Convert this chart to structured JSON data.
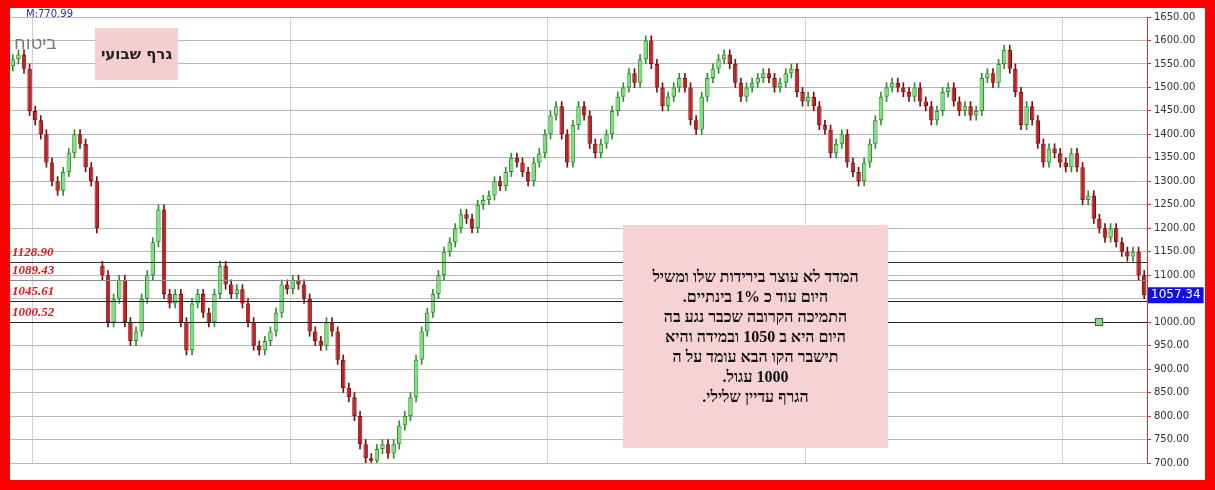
{
  "chart_data": {
    "type": "candlestick",
    "title": "ביטוח",
    "subtitle": "גרף שבועי",
    "annotations": [
      "M:770.99",
      "המדד לא עוצר  בירידות שלו ומשיל\nהיום עוד  כ  1% בינתיים.\nהתמיכה הקרובה  שכבר נגע בה\nהיום היא ב  1050  ובמידה והיא\nתישבר הקו הבא עומד על ה\n1000 עגול.\nהגרף עדיין  שלילי.",
      "1057.34"
    ],
    "categories": [
      null,
      null,
      null,
      null,
      null,
      null,
      null,
      null,
      null,
      null,
      null,
      null,
      null,
      null,
      null,
      null,
      null,
      null,
      null,
      null,
      null,
      null,
      null,
      null,
      null,
      null,
      null,
      null,
      null,
      null,
      null,
      null,
      null,
      null,
      null,
      null,
      null,
      null,
      null,
      null,
      null,
      null,
      null,
      null,
      null,
      null,
      null,
      null,
      null,
      null,
      null,
      null,
      null,
      null,
      null,
      null,
      null,
      null,
      null,
      null,
      null,
      null,
      null,
      null,
      null,
      null,
      null,
      null,
      null,
      null,
      null,
      null,
      null,
      null,
      null,
      null,
      null,
      null,
      null,
      null,
      null,
      null,
      null,
      null,
      null,
      null,
      null,
      null,
      null,
      null,
      null,
      null,
      null,
      null,
      null,
      null,
      null,
      null,
      null,
      null,
      null,
      null,
      null,
      null,
      null,
      null,
      null,
      null,
      null,
      null,
      null,
      null,
      null,
      null,
      null,
      null,
      null,
      null,
      null,
      null,
      null,
      null,
      null,
      null,
      null,
      null,
      null,
      null,
      null,
      null,
      null,
      null,
      null,
      null,
      null,
      null,
      null,
      null,
      null,
      null,
      null,
      null,
      null,
      null,
      null,
      null,
      null,
      null,
      null,
      null,
      null,
      null,
      null,
      null,
      null,
      null,
      null,
      null,
      null,
      null,
      null,
      null,
      null,
      null,
      null,
      null,
      null,
      null,
      null,
      null,
      null,
      null,
      null,
      null,
      null,
      null,
      null,
      null,
      null,
      null,
      null,
      null,
      null,
      null,
      null,
      null,
      null,
      null,
      null,
      null,
      null,
      null,
      null,
      null,
      null,
      null,
      null,
      null,
      null,
      null,
      null,
      null,
      null
    ],
    "ohlc": [
      [
        1545,
        1570,
        1535,
        1560
      ],
      [
        1560,
        1580,
        1550,
        1570
      ],
      [
        1570,
        1580,
        1530,
        1540
      ],
      [
        1540,
        1550,
        1440,
        1450
      ],
      [
        1450,
        1460,
        1420,
        1430
      ],
      [
        1430,
        1440,
        1390,
        1400
      ],
      [
        1400,
        1410,
        1330,
        1340
      ],
      [
        1340,
        1350,
        1290,
        1300
      ],
      [
        1300,
        1310,
        1270,
        1280
      ],
      [
        1280,
        1330,
        1270,
        1320
      ],
      [
        1320,
        1370,
        1310,
        1360
      ],
      [
        1360,
        1410,
        1350,
        1400
      ],
      [
        1400,
        1410,
        1370,
        1380
      ],
      [
        1380,
        1390,
        1320,
        1330
      ],
      [
        1330,
        1340,
        1290,
        1300
      ],
      [
        1300,
        1310,
        1190,
        1200
      ],
      [
        1120,
        1130,
        1090,
        1100
      ],
      [
        1100,
        1110,
        990,
        1000
      ],
      [
        1000,
        1060,
        990,
        1050
      ],
      [
        1050,
        1100,
        1040,
        1090
      ],
      [
        1090,
        1100,
        990,
        1000
      ],
      [
        1000,
        1010,
        950,
        960
      ],
      [
        960,
        990,
        950,
        980
      ],
      [
        980,
        1060,
        970,
        1050
      ],
      [
        1050,
        1110,
        1040,
        1100
      ],
      [
        1100,
        1180,
        1090,
        1170
      ],
      [
        1170,
        1250,
        1160,
        1240
      ],
      [
        1240,
        1250,
        1050,
        1060
      ],
      [
        1060,
        1070,
        1030,
        1040
      ],
      [
        1040,
        1070,
        1030,
        1060
      ],
      [
        1060,
        1070,
        990,
        1000
      ],
      [
        1000,
        1010,
        930,
        940
      ],
      [
        940,
        1050,
        930,
        1040
      ],
      [
        1040,
        1070,
        1030,
        1060
      ],
      [
        1060,
        1070,
        1010,
        1020
      ],
      [
        1020,
        1030,
        990,
        1000
      ],
      [
        1000,
        1070,
        990,
        1060
      ],
      [
        1060,
        1130,
        1050,
        1120
      ],
      [
        1120,
        1130,
        1070,
        1080
      ],
      [
        1080,
        1090,
        1050,
        1060
      ],
      [
        1060,
        1080,
        1050,
        1070
      ],
      [
        1070,
        1080,
        1030,
        1040
      ],
      [
        1040,
        1050,
        990,
        1000
      ],
      [
        1000,
        1010,
        940,
        950
      ],
      [
        950,
        960,
        930,
        940
      ],
      [
        940,
        970,
        930,
        960
      ],
      [
        960,
        990,
        950,
        980
      ],
      [
        980,
        1030,
        970,
        1020
      ],
      [
        1020,
        1090,
        1010,
        1080
      ],
      [
        1080,
        1090,
        1060,
        1070
      ],
      [
        1070,
        1100,
        1060,
        1090
      ],
      [
        1090,
        1100,
        1070,
        1080
      ],
      [
        1080,
        1090,
        1040,
        1050
      ],
      [
        1050,
        1060,
        970,
        980
      ],
      [
        980,
        990,
        950,
        960
      ],
      [
        960,
        970,
        940,
        950
      ],
      [
        950,
        1010,
        940,
        1000
      ],
      [
        1000,
        1010,
        970,
        980
      ],
      [
        980,
        990,
        910,
        920
      ],
      [
        920,
        930,
        850,
        860
      ],
      [
        860,
        870,
        830,
        840
      ],
      [
        840,
        850,
        790,
        800
      ],
      [
        800,
        810,
        730,
        740
      ],
      [
        740,
        750,
        700,
        710
      ],
      [
        710,
        720,
        700,
        705
      ],
      [
        705,
        740,
        700,
        730
      ],
      [
        730,
        750,
        720,
        740
      ],
      [
        740,
        750,
        710,
        720
      ],
      [
        720,
        750,
        710,
        740
      ],
      [
        740,
        790,
        730,
        780
      ],
      [
        780,
        810,
        770,
        800
      ],
      [
        800,
        850,
        790,
        840
      ],
      [
        840,
        930,
        830,
        920
      ],
      [
        920,
        990,
        910,
        980
      ],
      [
        980,
        1030,
        970,
        1020
      ],
      [
        1020,
        1070,
        1010,
        1060
      ],
      [
        1060,
        1110,
        1050,
        1100
      ],
      [
        1100,
        1160,
        1090,
        1150
      ],
      [
        1150,
        1180,
        1140,
        1170
      ],
      [
        1170,
        1210,
        1160,
        1200
      ],
      [
        1200,
        1240,
        1190,
        1230
      ],
      [
        1230,
        1240,
        1210,
        1220
      ],
      [
        1220,
        1230,
        1190,
        1200
      ],
      [
        1200,
        1260,
        1190,
        1250
      ],
      [
        1250,
        1270,
        1240,
        1260
      ],
      [
        1260,
        1280,
        1250,
        1270
      ],
      [
        1270,
        1310,
        1260,
        1300
      ],
      [
        1300,
        1310,
        1280,
        1290
      ],
      [
        1290,
        1330,
        1280,
        1320
      ],
      [
        1320,
        1360,
        1310,
        1350
      ],
      [
        1350,
        1360,
        1330,
        1340
      ],
      [
        1340,
        1350,
        1310,
        1320
      ],
      [
        1320,
        1330,
        1290,
        1300
      ],
      [
        1300,
        1350,
        1290,
        1340
      ],
      [
        1340,
        1370,
        1330,
        1360
      ],
      [
        1360,
        1410,
        1350,
        1400
      ],
      [
        1400,
        1450,
        1390,
        1440
      ],
      [
        1440,
        1470,
        1430,
        1460
      ],
      [
        1460,
        1470,
        1390,
        1400
      ],
      [
        1400,
        1410,
        1330,
        1340
      ],
      [
        1340,
        1430,
        1330,
        1420
      ],
      [
        1420,
        1470,
        1410,
        1460
      ],
      [
        1460,
        1470,
        1430,
        1440
      ],
      [
        1440,
        1450,
        1370,
        1380
      ],
      [
        1380,
        1390,
        1350,
        1360
      ],
      [
        1360,
        1390,
        1350,
        1380
      ],
      [
        1380,
        1410,
        1370,
        1400
      ],
      [
        1400,
        1460,
        1390,
        1450
      ],
      [
        1450,
        1490,
        1440,
        1480
      ],
      [
        1480,
        1510,
        1470,
        1500
      ],
      [
        1500,
        1540,
        1490,
        1530
      ],
      [
        1530,
        1540,
        1500,
        1510
      ],
      [
        1510,
        1570,
        1500,
        1560
      ],
      [
        1560,
        1610,
        1550,
        1600
      ],
      [
        1600,
        1610,
        1540,
        1550
      ],
      [
        1550,
        1560,
        1490,
        1500
      ],
      [
        1500,
        1510,
        1450,
        1460
      ],
      [
        1460,
        1490,
        1450,
        1480
      ],
      [
        1480,
        1510,
        1470,
        1500
      ],
      [
        1500,
        1530,
        1490,
        1520
      ],
      [
        1520,
        1530,
        1490,
        1500
      ],
      [
        1500,
        1510,
        1420,
        1430
      ],
      [
        1430,
        1440,
        1400,
        1410
      ],
      [
        1410,
        1490,
        1400,
        1480
      ],
      [
        1480,
        1530,
        1470,
        1520
      ],
      [
        1520,
        1550,
        1510,
        1540
      ],
      [
        1540,
        1570,
        1530,
        1560
      ],
      [
        1560,
        1580,
        1550,
        1570
      ],
      [
        1570,
        1580,
        1540,
        1550
      ],
      [
        1550,
        1560,
        1500,
        1510
      ],
      [
        1510,
        1520,
        1470,
        1480
      ],
      [
        1480,
        1510,
        1470,
        1500
      ],
      [
        1500,
        1520,
        1490,
        1510
      ],
      [
        1510,
        1530,
        1500,
        1520
      ],
      [
        1520,
        1540,
        1510,
        1530
      ],
      [
        1530,
        1540,
        1510,
        1520
      ],
      [
        1520,
        1530,
        1490,
        1500
      ],
      [
        1500,
        1520,
        1490,
        1510
      ],
      [
        1510,
        1540,
        1500,
        1530
      ],
      [
        1530,
        1550,
        1520,
        1540
      ],
      [
        1540,
        1550,
        1480,
        1490
      ],
      [
        1490,
        1500,
        1460,
        1470
      ],
      [
        1470,
        1490,
        1460,
        1480
      ],
      [
        1480,
        1490,
        1450,
        1460
      ],
      [
        1460,
        1470,
        1410,
        1420
      ],
      [
        1420,
        1430,
        1400,
        1410
      ],
      [
        1410,
        1420,
        1350,
        1360
      ],
      [
        1360,
        1390,
        1350,
        1380
      ],
      [
        1380,
        1410,
        1370,
        1400
      ],
      [
        1400,
        1410,
        1330,
        1340
      ],
      [
        1340,
        1350,
        1310,
        1320
      ],
      [
        1320,
        1330,
        1290,
        1300
      ],
      [
        1300,
        1350,
        1290,
        1340
      ],
      [
        1340,
        1390,
        1330,
        1380
      ],
      [
        1380,
        1440,
        1370,
        1430
      ],
      [
        1430,
        1490,
        1420,
        1480
      ],
      [
        1480,
        1510,
        1470,
        1500
      ],
      [
        1500,
        1520,
        1490,
        1510
      ],
      [
        1510,
        1520,
        1490,
        1500
      ],
      [
        1500,
        1510,
        1480,
        1490
      ],
      [
        1490,
        1500,
        1470,
        1480
      ],
      [
        1480,
        1510,
        1470,
        1500
      ],
      [
        1500,
        1510,
        1460,
        1470
      ],
      [
        1470,
        1480,
        1450,
        1460
      ],
      [
        1460,
        1470,
        1420,
        1430
      ],
      [
        1430,
        1460,
        1420,
        1450
      ],
      [
        1450,
        1500,
        1440,
        1490
      ],
      [
        1490,
        1510,
        1480,
        1500
      ],
      [
        1500,
        1510,
        1460,
        1470
      ],
      [
        1470,
        1480,
        1440,
        1450
      ],
      [
        1450,
        1470,
        1440,
        1460
      ],
      [
        1460,
        1470,
        1430,
        1440
      ],
      [
        1440,
        1460,
        1430,
        1450
      ],
      [
        1450,
        1530,
        1440,
        1520
      ],
      [
        1520,
        1540,
        1510,
        1530
      ],
      [
        1530,
        1540,
        1500,
        1510
      ],
      [
        1510,
        1560,
        1500,
        1550
      ],
      [
        1550,
        1590,
        1540,
        1580
      ],
      [
        1580,
        1590,
        1530,
        1540
      ],
      [
        1540,
        1550,
        1480,
        1490
      ],
      [
        1490,
        1500,
        1410,
        1420
      ],
      [
        1420,
        1470,
        1410,
        1460
      ],
      [
        1460,
        1470,
        1420,
        1430
      ],
      [
        1430,
        1440,
        1370,
        1380
      ],
      [
        1380,
        1390,
        1330,
        1340
      ],
      [
        1340,
        1380,
        1330,
        1370
      ],
      [
        1370,
        1380,
        1350,
        1360
      ],
      [
        1360,
        1370,
        1330,
        1340
      ],
      [
        1340,
        1350,
        1320,
        1330
      ],
      [
        1330,
        1370,
        1320,
        1360
      ],
      [
        1360,
        1370,
        1320,
        1330
      ],
      [
        1330,
        1340,
        1250,
        1260
      ],
      [
        1260,
        1280,
        1250,
        1270
      ],
      [
        1270,
        1280,
        1210,
        1220
      ],
      [
        1220,
        1230,
        1190,
        1200
      ],
      [
        1200,
        1210,
        1170,
        1180
      ],
      [
        1180,
        1210,
        1170,
        1200
      ],
      [
        1200,
        1210,
        1160,
        1170
      ],
      [
        1170,
        1180,
        1140,
        1150
      ],
      [
        1150,
        1160,
        1130,
        1140
      ],
      [
        1140,
        1160,
        1130,
        1150
      ],
      [
        1150,
        1160,
        1090,
        1100
      ],
      [
        1100,
        1110,
        1050,
        1057.34
      ]
    ],
    "ylim": [
      700,
      1650
    ],
    "yticks": [
      {
        "value": 700,
        "label": "700.00"
      },
      {
        "value": 750,
        "label": "750.00"
      },
      {
        "value": 800,
        "label": "800.00"
      },
      {
        "value": 850,
        "label": "850.00"
      },
      {
        "value": 900,
        "label": "900.00"
      },
      {
        "value": 950,
        "label": "950.00"
      },
      {
        "value": 1000,
        "label": "1000.00"
      },
      {
        "value": 1050,
        "label": null
      },
      {
        "value": 1100,
        "label": "1100.00"
      },
      {
        "value": 1150,
        "label": "1150.00"
      },
      {
        "value": 1200,
        "label": "1200.00"
      },
      {
        "value": 1250,
        "label": "1250.00"
      },
      {
        "value": 1300,
        "label": "1300.00"
      },
      {
        "value": 1350,
        "label": "1350.00"
      },
      {
        "value": 1400,
        "label": "1400.00"
      },
      {
        "value": 1450,
        "label": "1450.00"
      },
      {
        "value": 1500,
        "label": "1500.00"
      },
      {
        "value": 1550,
        "label": "1550.00"
      },
      {
        "value": 1600,
        "label": "1600.00"
      },
      {
        "value": 1650,
        "label": "1650.00"
      }
    ],
    "ref_lines": [
      {
        "axis": "y",
        "value": 1128.9,
        "label": "1128.90",
        "color": "#333333"
      },
      {
        "axis": "y",
        "value": 1089.43,
        "label": "1089.43",
        "color": "#888888"
      },
      {
        "axis": "y",
        "value": 1045.61,
        "label": "1045.61",
        "color": "#222222"
      },
      {
        "axis": "y",
        "value": 1000.52,
        "label": "1000.52",
        "color": "#222222"
      }
    ],
    "grid": true,
    "tick_labels": "y",
    "legend": false
  }
}
